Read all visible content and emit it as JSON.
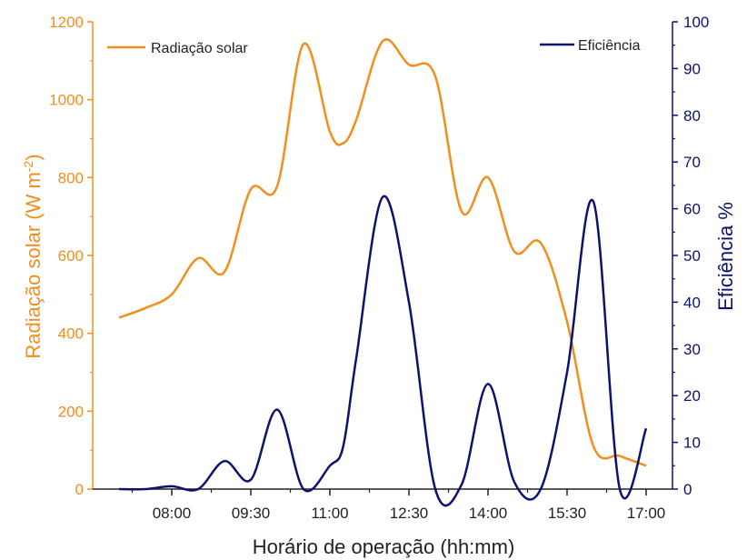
{
  "chart_data": {
    "type": "line",
    "xlabel": "Horário de operação (hh:mm)",
    "ylabel_left": "Radiação solar (W m",
    "ylabel_left_sup": "-2",
    "ylabel_left_end": ")",
    "ylabel_right": "Eficiência %",
    "x_ticks": [
      "08:00",
      "09:30",
      "11:00",
      "12:30",
      "14:00",
      "15:30",
      "17:00"
    ],
    "x_range": [
      "06:30",
      "17:30"
    ],
    "ylim_left": [
      0,
      1200
    ],
    "ylim_right": [
      0,
      100
    ],
    "yticks_left": [
      0,
      200,
      400,
      600,
      800,
      1000,
      1200
    ],
    "yticks_right": [
      0,
      10,
      20,
      30,
      40,
      50,
      60,
      70,
      80,
      90,
      100
    ],
    "grid": false,
    "colors": {
      "radiation": "#f28e1c",
      "efficiency": "#0d1170"
    },
    "series": [
      {
        "name": "Radiação solar",
        "axis": "left",
        "points": [
          [
            "07:00",
            440
          ],
          [
            "07:30",
            465
          ],
          [
            "08:00",
            500
          ],
          [
            "08:30",
            593
          ],
          [
            "09:00",
            558
          ],
          [
            "09:30",
            770
          ],
          [
            "10:00",
            778
          ],
          [
            "10:30",
            1143
          ],
          [
            "11:00",
            918
          ],
          [
            "11:15",
            888
          ],
          [
            "11:30",
            948
          ],
          [
            "12:00",
            1150
          ],
          [
            "12:30",
            1090
          ],
          [
            "13:00",
            1060
          ],
          [
            "13:30",
            713
          ],
          [
            "14:00",
            800
          ],
          [
            "14:30",
            610
          ],
          [
            "15:00",
            632
          ],
          [
            "15:30",
            430
          ],
          [
            "16:00",
            110
          ],
          [
            "16:30",
            85
          ],
          [
            "17:00",
            60
          ]
        ]
      },
      {
        "name": "Eficiência",
        "axis": "right",
        "points": [
          [
            "07:00",
            0
          ],
          [
            "07:30",
            0
          ],
          [
            "08:00",
            0.6
          ],
          [
            "08:30",
            0
          ],
          [
            "09:00",
            6
          ],
          [
            "09:30",
            2
          ],
          [
            "10:00",
            17
          ],
          [
            "10:30",
            0
          ],
          [
            "11:00",
            5
          ],
          [
            "11:15",
            9
          ],
          [
            "11:30",
            28
          ],
          [
            "12:00",
            62.5
          ],
          [
            "12:30",
            40
          ],
          [
            "13:00",
            0
          ],
          [
            "13:30",
            1
          ],
          [
            "14:00",
            22.5
          ],
          [
            "14:30",
            1.5
          ],
          [
            "15:00",
            0
          ],
          [
            "15:30",
            25
          ],
          [
            "16:00",
            61.5
          ],
          [
            "16:30",
            0
          ],
          [
            "17:00",
            13
          ]
        ]
      }
    ]
  }
}
